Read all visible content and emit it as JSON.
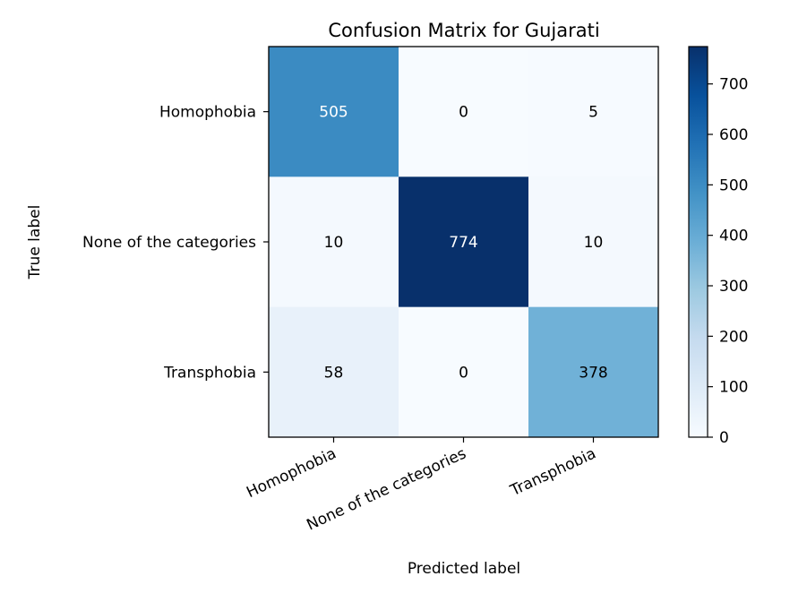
{
  "chart_data": {
    "type": "heatmap",
    "title": "Confusion Matrix for Gujarati",
    "xlabel": "Predicted label",
    "ylabel": "True label",
    "x_categories": [
      "Homophobia",
      "None of the categories",
      "Transphobia"
    ],
    "y_categories": [
      "Homophobia",
      "None of the categories",
      "Transphobia"
    ],
    "values": [
      [
        505,
        0,
        5
      ],
      [
        10,
        774,
        10
      ],
      [
        58,
        0,
        378
      ]
    ],
    "colorbar": {
      "colormap": "Blues",
      "range": [
        0,
        774
      ],
      "ticks": [
        0,
        100,
        200,
        300,
        400,
        500,
        600,
        700
      ]
    }
  }
}
